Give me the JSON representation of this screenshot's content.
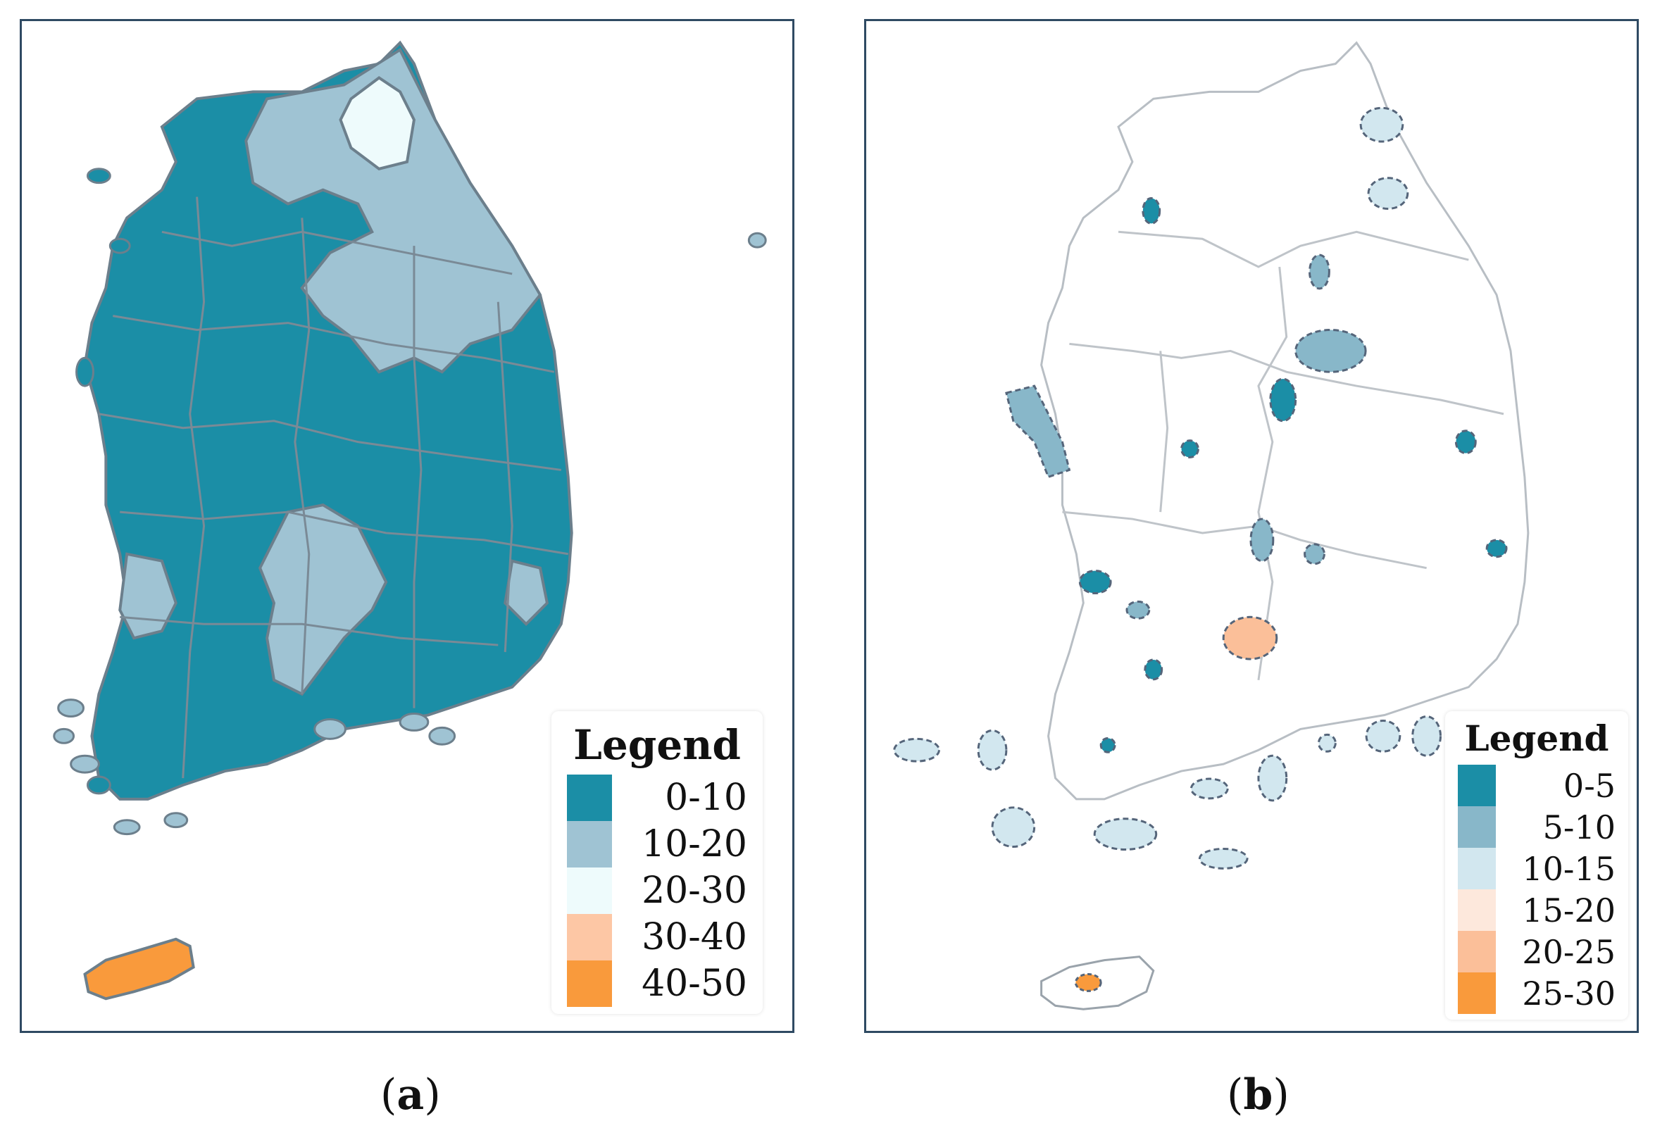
{
  "panels": [
    {
      "caption_open": "(",
      "caption_letter": "a",
      "caption_close": ")",
      "legend": {
        "title": "Legend",
        "items": [
          {
            "label": "0-10",
            "color": "#1b8ea6"
          },
          {
            "label": "10-20",
            "color": "#9fc3d3"
          },
          {
            "label": "20-30",
            "color": "#eefbfc"
          },
          {
            "label": "30-40",
            "color": "#fdc7a5"
          },
          {
            "label": "40-50",
            "color": "#f99a3c"
          }
        ]
      }
    },
    {
      "caption_open": "(",
      "caption_letter": "b",
      "caption_close": ")",
      "legend": {
        "title": "Legend",
        "items": [
          {
            "label": "0-5",
            "color": "#1b8ea6"
          },
          {
            "label": "5-10",
            "color": "#88b7c9"
          },
          {
            "label": "10-15",
            "color": "#d2e7ef"
          },
          {
            "label": "15-20",
            "color": "#fde8dc"
          },
          {
            "label": "20-25",
            "color": "#fbbf99"
          },
          {
            "label": "25-30",
            "color": "#f99a3c"
          }
        ]
      }
    }
  ]
}
